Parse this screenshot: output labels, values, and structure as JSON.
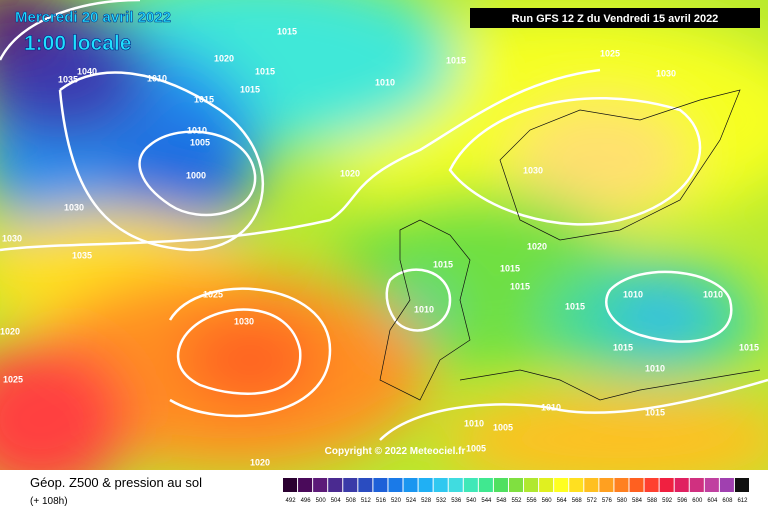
{
  "header": {
    "title": "Mercredi 20 avril 2022",
    "local_time": "1:00 locale",
    "run": "Run GFS 12 Z du Vendredi 15 avril 2022"
  },
  "isobar_labels": [
    1015,
    1020,
    1015,
    1010,
    1040,
    1035,
    1015,
    1015,
    1010,
    1015,
    1025,
    1030,
    1010,
    1005,
    1000,
    1020,
    1030,
    1030,
    1030,
    1020,
    1035,
    1015,
    1015,
    1015,
    1025,
    1010,
    1010,
    1010,
    1015,
    1030,
    1020,
    1015,
    1015,
    1025,
    1010,
    1010,
    1015,
    1010,
    1005,
    1005,
    1020
  ],
  "copyright": "Copyright © 2022 Meteociel.fr",
  "legend": {
    "title": "Géop. Z500 & pression au sol",
    "lead": "(+ 108h)",
    "levels": [
      492,
      496,
      500,
      504,
      508,
      512,
      516,
      520,
      524,
      528,
      532,
      536,
      540,
      544,
      548,
      552,
      556,
      560,
      564,
      568,
      572,
      576,
      580,
      584,
      588,
      592,
      596,
      600,
      604,
      608,
      612
    ],
    "colors": [
      "#2a0030",
      "#4a0a5a",
      "#5c1a78",
      "#4a2a90",
      "#3a3aa8",
      "#2a4cc0",
      "#1e60d8",
      "#1a7ae8",
      "#1a96f0",
      "#20b0f4",
      "#30c8f0",
      "#40dce0",
      "#40e8b8",
      "#40e890",
      "#50e060",
      "#80e040",
      "#b0e830",
      "#e0f020",
      "#ffff20",
      "#ffe020",
      "#ffc020",
      "#ffa020",
      "#ff8020",
      "#ff6020",
      "#ff4030",
      "#f02040",
      "#e02060",
      "#d03080",
      "#c040a0",
      "#a040b0",
      "#101010"
    ]
  }
}
